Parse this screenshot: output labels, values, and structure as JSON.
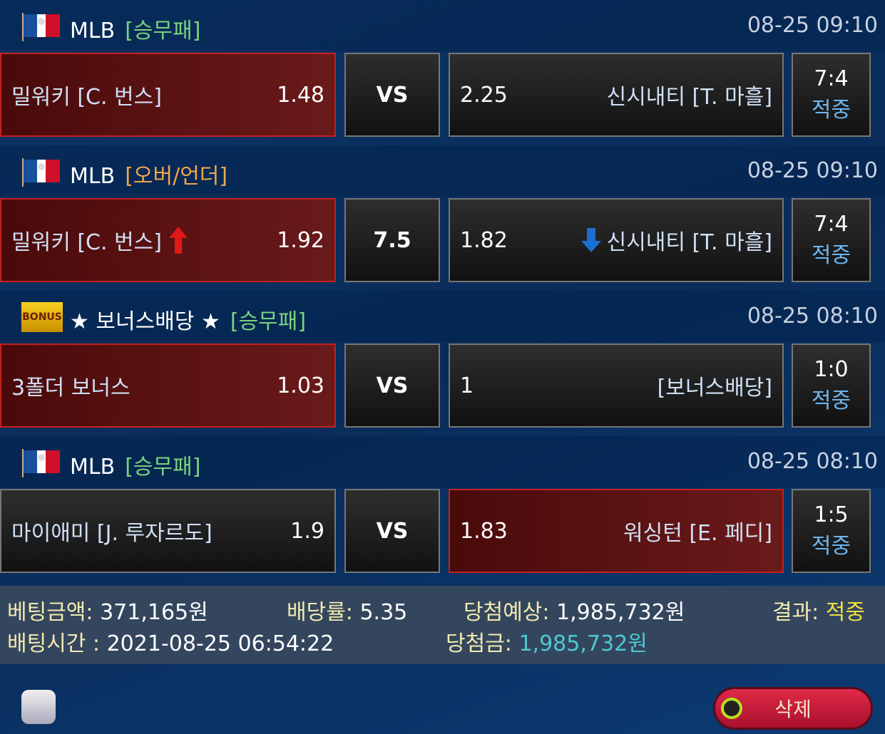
{
  "bets": [
    {
      "league": "MLB",
      "type": "[승무패]",
      "type_color": "green",
      "icon": "mlb-logo-icon",
      "date": "08-25 09:10",
      "left": {
        "team": "밀워키 [C. 번스]",
        "odds": "1.48",
        "selected": true
      },
      "middle": "VS",
      "right": {
        "team": "신시내티 [T. 마흘]",
        "odds": "2.25",
        "selected": false
      },
      "score": "7:4",
      "result": "적중"
    },
    {
      "league": "MLB",
      "type": "[오버/언더]",
      "type_color": "orange",
      "icon": "mlb-logo-icon",
      "date": "08-25 09:10",
      "left": {
        "team": "밀워키 [C. 번스]",
        "odds": "1.92",
        "selected": true,
        "arrow": "up"
      },
      "middle": "7.5",
      "right": {
        "team": "신시내티 [T. 마흘]",
        "odds": "1.82",
        "selected": false,
        "arrow": "down"
      },
      "score": "7:4",
      "result": "적중"
    },
    {
      "league": "★ 보너스배당 ★",
      "type": "[승무패]",
      "type_color": "green",
      "icon": "bonus-icon",
      "date": "08-25 08:10",
      "left": {
        "team": "3폴더 보너스",
        "odds": "1.03",
        "selected": true
      },
      "middle": "VS",
      "right": {
        "team": "[보너스배당]",
        "odds": "1",
        "selected": false
      },
      "score": "1:0",
      "result": "적중"
    },
    {
      "league": "MLB",
      "type": "[승무패]",
      "type_color": "green",
      "icon": "mlb-logo-icon",
      "date": "08-25 08:10",
      "left": {
        "team": "마이애미 [J. 루자르도]",
        "odds": "1.9",
        "selected": false
      },
      "middle": "VS",
      "right": {
        "team": "워싱턴 [E. 페디]",
        "odds": "1.83",
        "selected": true
      },
      "score": "1:5",
      "result": "적중"
    }
  ],
  "summary": {
    "bet_amount_label": "베팅금액:",
    "bet_amount": "371,165원",
    "rate_label": "배당률:",
    "rate": "5.35",
    "expected_label": "당첨예상:",
    "expected": "1,985,732원",
    "result_label": "결과:",
    "result": "적중",
    "time_label": "배팅시간 :",
    "time": "2021-08-25 06:54:22",
    "win_label": "당첨금:",
    "win": "1,985,732원"
  },
  "footer": {
    "delete_label": "삭제"
  },
  "bonus_logo_text": "BONUS"
}
